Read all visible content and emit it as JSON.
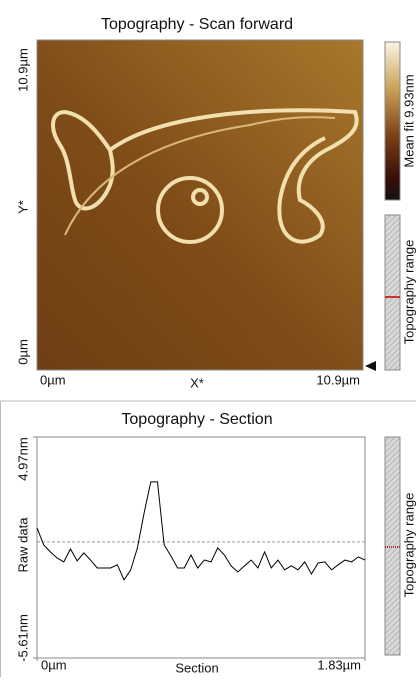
{
  "scan_panel": {
    "title": "Topography - Scan forward",
    "x_label": "X*",
    "y_label": "Y*",
    "x_tick_labels": [
      "0µm",
      "10.9µm"
    ],
    "y_tick_labels": [
      "10.9µm",
      "0µm"
    ],
    "colorbar_label": "Mean fit 9.93nm",
    "range_label": "Topography range"
  },
  "chart_data": {
    "type": "line",
    "title": "Topography - Section",
    "x_label": "Section",
    "y_label": "Raw data",
    "range_label": "Topography range",
    "xlim": [
      0,
      1.83
    ],
    "xticks": [
      {
        "value": 0,
        "label": "0µm"
      },
      {
        "value": 1.83,
        "label": "1.83µm"
      }
    ],
    "ylim": [
      -5.61,
      4.97
    ],
    "yticks": [
      {
        "value": 4.97,
        "label": "4.97nm"
      },
      {
        "value": -5.61,
        "label": "-5.61nm"
      }
    ],
    "reference_line": -0.05,
    "series": [
      {
        "color": "#000000",
        "values": [
          0.62,
          -0.2,
          -0.53,
          -0.82,
          -1.01,
          -0.39,
          -0.96,
          -0.58,
          -0.92,
          -1.3,
          -1.3,
          -1.3,
          -1.15,
          -1.87,
          -1.39,
          -0.34,
          1.33,
          2.82,
          2.82,
          -0.2,
          -0.72,
          -1.3,
          -1.3,
          -0.68,
          -1.3,
          -0.92,
          -1.01,
          -0.34,
          -0.68,
          -1.2,
          -1.49,
          -1.2,
          -0.92,
          -1.3,
          -0.53,
          -1.3,
          -0.92,
          -1.39,
          -1.2,
          -1.39,
          -1.01,
          -1.59,
          -1.06,
          -1.01,
          -1.39,
          -1.15,
          -0.92,
          -1.01,
          -0.77,
          -0.92
        ]
      }
    ]
  }
}
